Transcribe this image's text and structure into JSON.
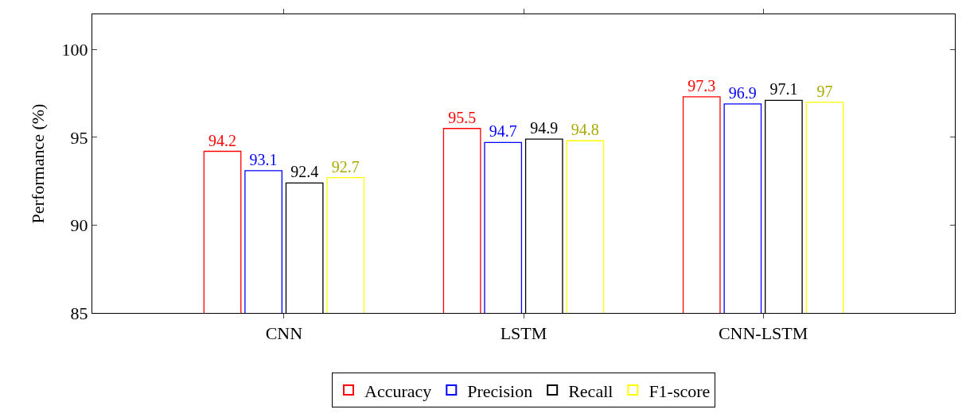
{
  "chart_data": {
    "type": "bar",
    "ylabel": "Performance (%)",
    "categories": [
      "CNN",
      "LSTM",
      "CNN-LSTM"
    ],
    "series": [
      {
        "name": "Accuracy",
        "color": "#ff0000",
        "values": [
          94.2,
          95.5,
          97.3
        ]
      },
      {
        "name": "Precision",
        "color": "#0000ff",
        "values": [
          93.1,
          94.7,
          96.9
        ]
      },
      {
        "name": "Recall",
        "color": "#000000",
        "values": [
          92.4,
          94.9,
          97.1
        ]
      },
      {
        "name": "F1-score",
        "color": "#ffff00",
        "values": [
          92.7,
          94.8,
          97
        ]
      }
    ],
    "ylim": [
      85,
      102
    ],
    "yticks": [
      85,
      90,
      95,
      100
    ],
    "data_labels": true,
    "legend": "bottom"
  }
}
